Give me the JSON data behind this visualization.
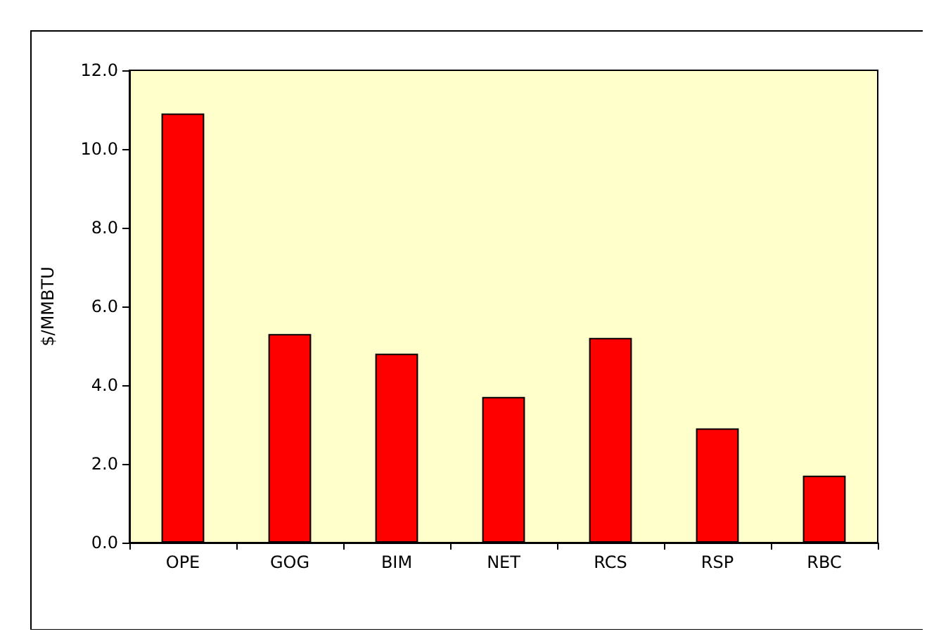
{
  "chart_data": {
    "type": "bar",
    "ylabel": "$/MMBTU",
    "categories": [
      "OPE",
      "GOG",
      "BIM",
      "NET",
      "RCS",
      "RSP",
      "RBC"
    ],
    "values": [
      10.9,
      5.3,
      4.8,
      3.7,
      5.2,
      2.9,
      1.7
    ],
    "color": "#ff0000",
    "ylim": [
      0,
      12
    ],
    "yticks": [
      {
        "value": 0,
        "label": "0.0"
      },
      {
        "value": 2,
        "label": "2.0"
      },
      {
        "value": 4,
        "label": "4.0"
      },
      {
        "value": 6,
        "label": "6.0"
      },
      {
        "value": 8,
        "label": "8.0"
      },
      {
        "value": 10,
        "label": "10.0"
      },
      {
        "value": 12,
        "label": "12.0"
      }
    ],
    "grid": false
  }
}
